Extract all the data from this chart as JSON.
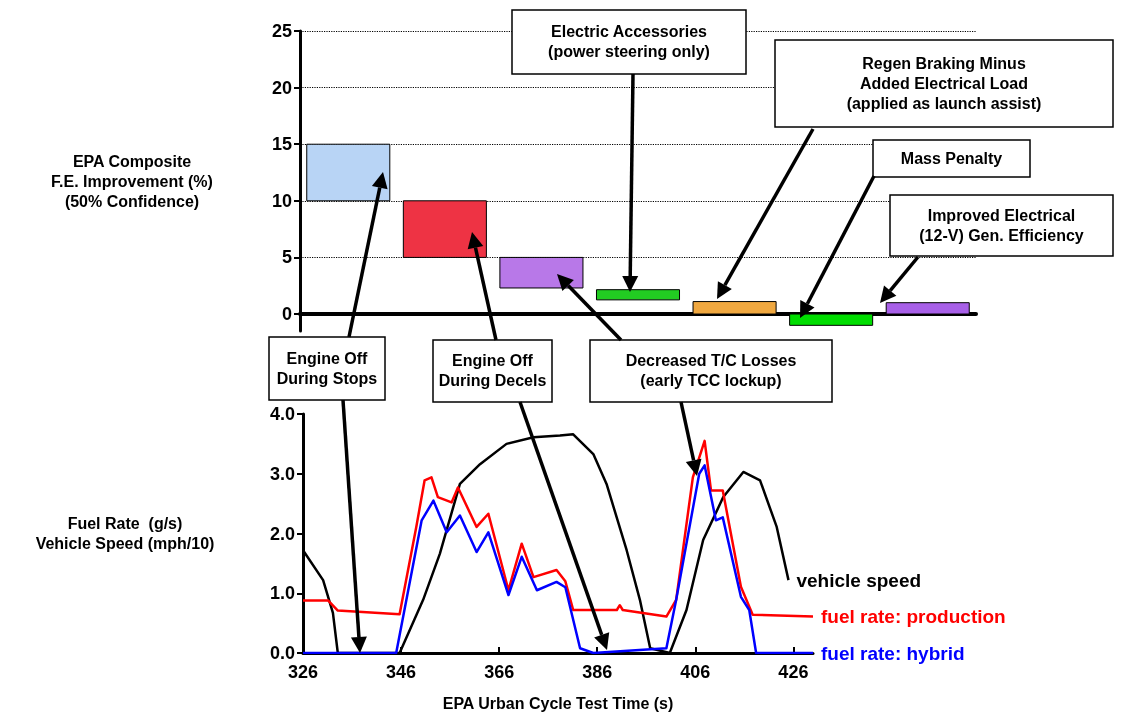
{
  "chart_data": [
    {
      "type": "bar",
      "categories": [
        null,
        null,
        null,
        null,
        null,
        null,
        null
      ],
      "values": [
        5,
        5,
        2.7,
        0.9,
        1.1,
        -1,
        1.0
      ],
      "base": [
        10,
        5,
        2.3,
        1.25,
        0,
        0,
        0
      ],
      "colors": [
        "#b8d4f5",
        "#ee3344",
        "#b878e8",
        "#22cc22",
        "#f0a840",
        "#00dd00",
        "#a860e8"
      ],
      "ylabel": "EPA Composite\nF.E. Improvement (%)\n(50% Confidence)",
      "ylim": [
        -1.5,
        25
      ],
      "yticks": [
        0,
        5,
        10,
        15,
        20,
        25
      ],
      "grid": "y",
      "tick_labels": "y",
      "annotations": [
        "Engine Off\nDuring Stops",
        "Engine Off\nDuring Decels",
        "Decreased T/C Losses\n(early TCC  lockup)",
        "Electric Accessories\n(power steering only)",
        "Regen Braking Minus\nAdded Electrical Load\n(applied as launch assist)",
        "Mass Penalty",
        "Improved Electrical\n(12-V) Gen. Efficiency"
      ]
    },
    {
      "type": "line",
      "xlabel": "EPA Urban Cycle Test Time (s)",
      "ylabel": "Fuel Rate  (g/s)\nVehicle Speed (mph/10)",
      "xlim": [
        326,
        430
      ],
      "xticks": [
        326,
        346,
        366,
        386,
        406,
        426
      ],
      "ylim": [
        0,
        4
      ],
      "yticks": [
        {
          "value": 0,
          "label": "0.0"
        },
        {
          "value": 1,
          "label": "1.0"
        },
        {
          "value": 2,
          "label": "2.0"
        },
        {
          "value": 3,
          "label": "3.0"
        },
        {
          "value": 4,
          "label": "4.0"
        }
      ],
      "series": [
        {
          "name": "vehicle speed",
          "color": "#000000",
          "x": [
            326,
            330.1,
            332.1,
            333.1,
            345.7,
            350.5,
            353.9,
            358,
            362.1,
            367.5,
            373,
            378.4,
            381.1,
            385.2,
            387.9,
            392,
            394.7,
            396.8,
            400.8,
            404.2,
            407.6,
            411.7,
            415.8,
            419.2,
            422.6,
            425
          ],
          "values": [
            1.72,
            1.22,
            0.67,
            0,
            0,
            0.89,
            1.66,
            2.83,
            3.16,
            3.5,
            3.61,
            3.64,
            3.66,
            3.33,
            2.83,
            1.72,
            0.89,
            0.08,
            0,
            0.72,
            1.89,
            2.61,
            3.03,
            2.89,
            2.11,
            1.22
          ]
        },
        {
          "name": "fuel rate: production",
          "color": "#ff0000",
          "x": [
            326,
            331.1,
            333.1,
            345.7,
            349.1,
            350.8,
            352.2,
            353.5,
            356.3,
            357.6,
            361.4,
            363.8,
            367.9,
            370.6,
            373,
            377.7,
            379.5,
            381.1,
            390,
            390.6,
            391.2,
            400.1,
            402.1,
            405.5,
            407.9,
            409.2,
            411.6,
            415.3,
            417.7,
            430
          ],
          "values": [
            0.88,
            0.88,
            0.71,
            0.65,
            2.11,
            2.89,
            2.94,
            2.61,
            2.52,
            2.77,
            2.11,
            2.33,
            1.05,
            1.83,
            1.27,
            1.39,
            1.2,
            0.72,
            0.72,
            0.8,
            0.72,
            0.61,
            0.89,
            2.94,
            3.55,
            2.72,
            2.72,
            1.11,
            0.64,
            0.61
          ]
        },
        {
          "name": "fuel rate: hybrid",
          "color": "#0000ff",
          "x": [
            326,
            345,
            350.2,
            352.6,
            355.3,
            358,
            361.4,
            363.8,
            367.9,
            370.6,
            373.7,
            377.7,
            379.5,
            382.5,
            385.2,
            400.1,
            402.1,
            406.8,
            407.9,
            410.2,
            411.6,
            415.3,
            417,
            418.4,
            430
          ],
          "values": [
            0,
            0,
            2.22,
            2.55,
            2.02,
            2.3,
            1.69,
            2.02,
            0.97,
            1.61,
            1.05,
            1.19,
            1.1,
            0.08,
            0,
            0.08,
            0.89,
            3.0,
            3.14,
            2.22,
            2.27,
            0.94,
            0.72,
            0,
            0
          ]
        }
      ]
    }
  ]
}
